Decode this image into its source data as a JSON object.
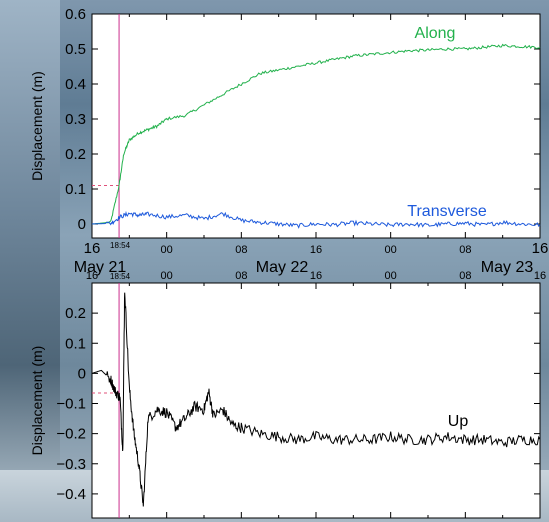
{
  "chart_data": [
    {
      "type": "line",
      "ylabel": "Displacement (m)",
      "ylim": [
        -0.04,
        0.6
      ],
      "yticks": [
        "0",
        "0.1",
        "0.2",
        "0.3",
        "0.4",
        "0.5",
        "0.6"
      ],
      "x_range_hours": [
        -32,
        16
      ],
      "x_tick_labels": [
        "16",
        "00",
        "08",
        "16",
        "00",
        "08",
        "16"
      ],
      "event_label": "18:54",
      "series": [
        {
          "name": "Along",
          "color": "#22b14c",
          "x": [
            "-32",
            "-30",
            "-29.1",
            "-28.6",
            "-28",
            "-27",
            "-26",
            "-25",
            "-24",
            "-22",
            "-20",
            "-18",
            "-16",
            "-14",
            "-12",
            "-10",
            "-8",
            "-6",
            "-4",
            "-2",
            "0",
            "2",
            "4",
            "6",
            "8",
            "10",
            "12",
            "14",
            "16"
          ],
          "values": [
            0,
            0.005,
            0.11,
            0.2,
            0.24,
            0.26,
            0.27,
            0.28,
            0.3,
            0.31,
            0.34,
            0.37,
            0.4,
            0.43,
            0.44,
            0.45,
            0.46,
            0.47,
            0.48,
            0.485,
            0.49,
            0.495,
            0.497,
            0.5,
            0.5,
            0.505,
            0.51,
            0.507,
            0.505
          ]
        },
        {
          "name": "Transverse",
          "color": "#1e5adc",
          "x": [
            "-32",
            "-30",
            "-29",
            "-28",
            "-27",
            "-26",
            "-24",
            "-22",
            "-20",
            "-18",
            "-16",
            "-14",
            "-12",
            "-10",
            "-8",
            "-6",
            "-4",
            "-2",
            "0",
            "2",
            "4",
            "6",
            "8",
            "10",
            "12",
            "14",
            "16"
          ],
          "values": [
            0,
            0.002,
            0.02,
            0.03,
            0.025,
            0.028,
            0.02,
            0.025,
            0.015,
            0.03,
            0.01,
            0.005,
            0.0,
            -0.005,
            0.0,
            -0.002,
            0.003,
            0.0,
            -0.003,
            0.0,
            -0.004,
            0.0,
            0.002,
            -0.003,
            0.005,
            0.0,
            -0.002
          ]
        }
      ]
    },
    {
      "type": "line",
      "ylabel": "Displacement (m)",
      "ylim": [
        -0.48,
        0.3
      ],
      "yticks": [
        "0.2",
        "0.1",
        "0",
        "−0.1",
        "−0.2",
        "−0.3",
        "−0.4"
      ],
      "x_range_hours": [
        -32,
        16
      ],
      "x_tick_labels": [
        "16",
        "00",
        "08",
        "16",
        "00",
        "08",
        "16"
      ],
      "event_label": "18:54",
      "series": [
        {
          "name": "Up",
          "color": "#000000",
          "x": [
            "-32",
            "-31",
            "-30",
            "-29.5",
            "-29",
            "-28.7",
            "-28.5",
            "-28",
            "-27.5",
            "-27",
            "-26.5",
            "-26",
            "-25",
            "-24",
            "-23",
            "-22",
            "-21",
            "-20",
            "-19.5",
            "-19",
            "-18",
            "-17",
            "-16",
            "-14",
            "-12",
            "-10",
            "-8",
            "-6",
            "-4",
            "-2",
            "0",
            "2",
            "4",
            "6",
            "8",
            "10",
            "12",
            "14",
            "16"
          ],
          "values": [
            0,
            0.01,
            -0.02,
            -0.06,
            -0.08,
            -0.26,
            0.28,
            -0.05,
            -0.2,
            -0.3,
            -0.44,
            -0.15,
            -0.12,
            -0.13,
            -0.18,
            -0.15,
            -0.11,
            -0.12,
            -0.06,
            -0.14,
            -0.12,
            -0.17,
            -0.18,
            -0.2,
            -0.21,
            -0.22,
            -0.21,
            -0.22,
            -0.22,
            -0.22,
            -0.21,
            -0.22,
            -0.22,
            -0.21,
            -0.22,
            -0.22,
            -0.23,
            -0.22,
            -0.22
          ]
        }
      ]
    }
  ],
  "date_labels": [
    "May 21",
    "May 22",
    "May 23"
  ]
}
